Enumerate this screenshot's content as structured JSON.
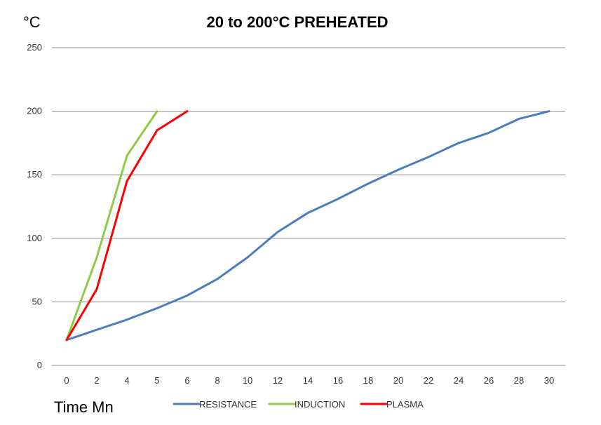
{
  "chart_data": {
    "type": "line",
    "title": "20 to 200°C  PREHEATED",
    "ylabel": "°C",
    "xlabel": "Time  Mn",
    "x_ticks": [
      0,
      2,
      4,
      5,
      6,
      8,
      10,
      12,
      14,
      16,
      18,
      20,
      22,
      24,
      26,
      28,
      30
    ],
    "y_ticks": [
      0,
      50,
      100,
      150,
      200,
      250
    ],
    "ylim": [
      0,
      250
    ],
    "grid": true,
    "legend_position": "bottom",
    "series": [
      {
        "name": "RESISTANCE",
        "color": "#4a7ebb",
        "points": [
          [
            0,
            20
          ],
          [
            2,
            28
          ],
          [
            4,
            36
          ],
          [
            5,
            45
          ],
          [
            6,
            55
          ],
          [
            8,
            68
          ],
          [
            10,
            85
          ],
          [
            12,
            105
          ],
          [
            14,
            120
          ],
          [
            16,
            131
          ],
          [
            18,
            143
          ],
          [
            20,
            154
          ],
          [
            22,
            164
          ],
          [
            24,
            175
          ],
          [
            26,
            183
          ],
          [
            28,
            194
          ],
          [
            30,
            200
          ]
        ]
      },
      {
        "name": "INDUCTION",
        "color": "#8fcb45",
        "points": [
          [
            0,
            20
          ],
          [
            2,
            85
          ],
          [
            4,
            165
          ],
          [
            5,
            200
          ]
        ]
      },
      {
        "name": "PLASMA",
        "color": "#ff0000",
        "points": [
          [
            0,
            20
          ],
          [
            2,
            60
          ],
          [
            4,
            145
          ],
          [
            5,
            185
          ],
          [
            6,
            200
          ]
        ]
      }
    ]
  }
}
